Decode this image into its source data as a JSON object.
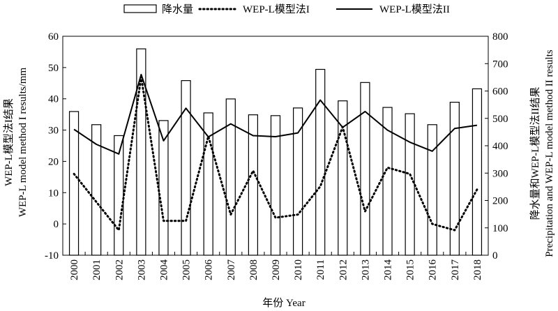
{
  "chart_data": {
    "type": "bar+line",
    "categories": [
      "2000",
      "2001",
      "2002",
      "2003",
      "2004",
      "2005",
      "2006",
      "2007",
      "2008",
      "2009",
      "2010",
      "2011",
      "2012",
      "2013",
      "2014",
      "2015",
      "2016",
      "2017",
      "2018"
    ],
    "x_title": "年份 Year",
    "y_left": {
      "title_line1": "WEP-L模型法I结果",
      "title_line2": "WEP-L model method I results/mm",
      "ylim": [
        -10,
        60
      ],
      "ticks": [
        -10,
        0,
        10,
        20,
        30,
        40,
        50,
        60
      ]
    },
    "y_right": {
      "title_line1": "降水量和WEP-L模型法II结果",
      "title_line2": "Precipitation and WEP-L model method II results",
      "ylim": [
        0,
        800
      ],
      "ticks": [
        0,
        100,
        200,
        300,
        400,
        500,
        600,
        700,
        800
      ]
    },
    "legend": {
      "position": "top",
      "entries": [
        "降水量",
        "WEP-L模型法I",
        "WEP-L模型法II"
      ]
    },
    "series": [
      {
        "name": "降水量",
        "kind": "bar",
        "axis": "right",
        "values": [
          525,
          477,
          437,
          754,
          492,
          638,
          520,
          571,
          513,
          510,
          538,
          679,
          564,
          631,
          540,
          517,
          477,
          559,
          608
        ]
      },
      {
        "name": "WEP-L模型法I",
        "kind": "line",
        "style": "dotted",
        "axis": "left",
        "values": [
          16,
          7,
          -2,
          47,
          1,
          1,
          28,
          3,
          17,
          2,
          3,
          12,
          31,
          4,
          18,
          16,
          0,
          -2,
          11
        ]
      },
      {
        "name": "WEP-L模型法II",
        "kind": "line",
        "style": "solid",
        "axis": "right",
        "values": [
          460,
          405,
          370,
          660,
          418,
          537,
          432,
          480,
          437,
          433,
          447,
          567,
          467,
          525,
          457,
          413,
          380,
          463,
          475
        ]
      }
    ]
  }
}
